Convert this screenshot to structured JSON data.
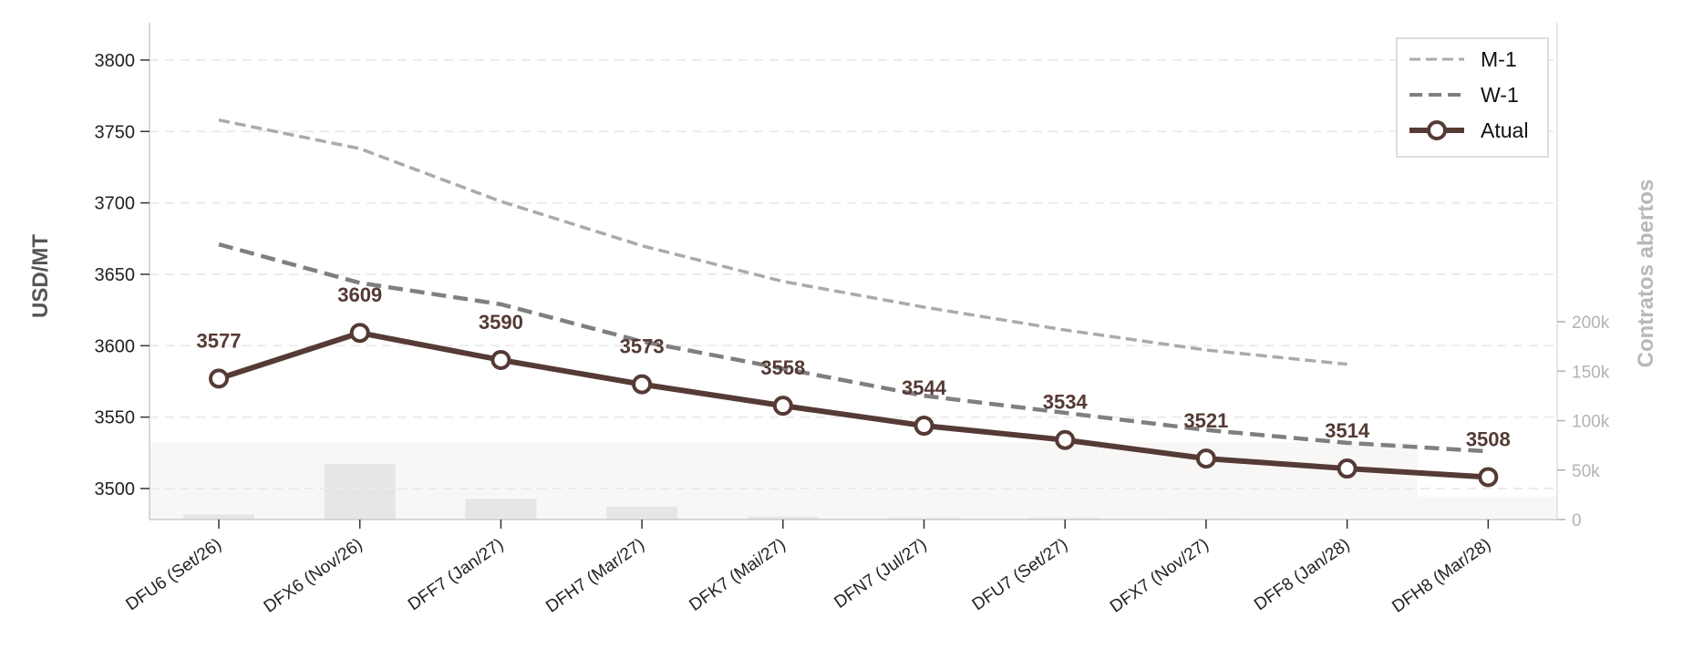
{
  "chart_data": {
    "type": "line",
    "categories": [
      "DFU6 (Set/26)",
      "DFX6 (Nov/26)",
      "DFF7 (Jan/27)",
      "DFH7 (Mar/27)",
      "DFK7 (Mai/27)",
      "DFN7 (Jul/27)",
      "DFU7 (Set/27)",
      "DFX7 (Nov/27)",
      "DFF8 (Jan/28)",
      "DFH8 (Mar/28)"
    ],
    "ylabel": "USD/MT",
    "y2label": "Contratos abertos",
    "ylim": [
      3478,
      3822
    ],
    "yticks": [
      3500,
      3550,
      3600,
      3650,
      3700,
      3750,
      3800
    ],
    "y2lim": [
      0,
      250000
    ],
    "y2ticks": [
      0,
      50000,
      100000,
      150000,
      200000
    ],
    "y2ticklabels": [
      "0",
      "50k",
      "100k",
      "150k",
      "200k"
    ],
    "grid": true,
    "legend_position": "top-right",
    "series": [
      {
        "name": "M-1",
        "style": "dashed-light",
        "color": "#aaaaaa",
        "values": [
          3758,
          3738,
          3701,
          3670,
          3645,
          3627,
          3611,
          3597,
          3587,
          null
        ]
      },
      {
        "name": "W-1",
        "style": "dashed",
        "color": "#7f7f7f",
        "values": [
          3671,
          3644,
          3629,
          3603,
          3584,
          3565,
          3553,
          3541,
          3532,
          3526
        ]
      },
      {
        "name": "Atual",
        "style": "solid-markers",
        "color": "#553a35",
        "values": [
          3577,
          3609,
          3590,
          3573,
          3558,
          3544,
          3534,
          3521,
          3514,
          3508
        ]
      }
    ],
    "data_labels": [
      "3577",
      "3609",
      "3590",
      "3573",
      "3558",
      "3544",
      "3534",
      "3521",
      "3514",
      "3508"
    ],
    "open_interest": [
      5000,
      56000,
      21000,
      13000,
      3000,
      1500,
      1500,
      1000,
      0,
      0
    ],
    "background_fill": [
      78000,
      78000,
      78000,
      78000,
      78000,
      78000,
      78000,
      78000,
      78000,
      23000
    ],
    "colors": {
      "accent": "#553a35",
      "bars": "#e6e6e6",
      "fill": "#f8f7f5",
      "grid": "#ebebeb",
      "secondary_axis": "#b3b3b3"
    }
  }
}
